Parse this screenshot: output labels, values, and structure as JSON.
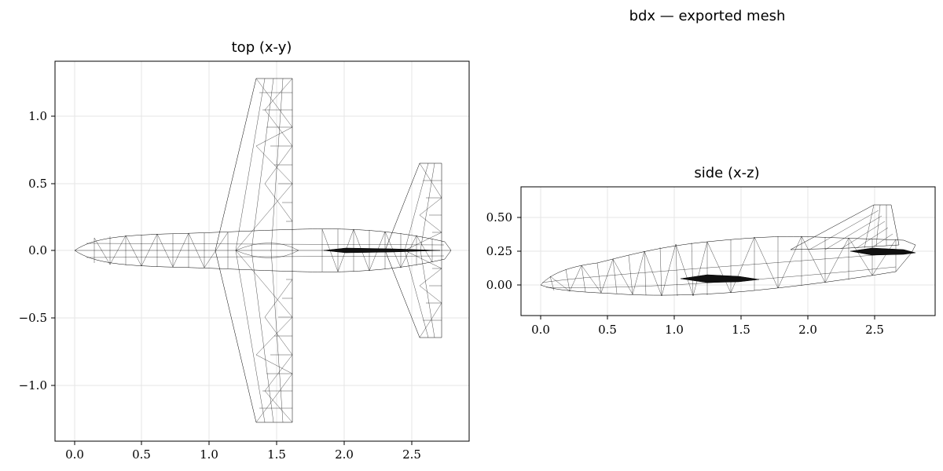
{
  "figure": {
    "suptitle": "bdx — exported mesh"
  },
  "panels": {
    "top": {
      "title": "top (x-y)",
      "x_ticks": [
        "0.0",
        "0.5",
        "1.0",
        "1.5",
        "2.0",
        "2.5"
      ],
      "y_ticks": [
        "1.0",
        "0.5",
        "0.0",
        "−0.5",
        "−1.0"
      ]
    },
    "side": {
      "title": "side (x-z)",
      "x_ticks": [
        "0.0",
        "0.5",
        "1.0",
        "1.5",
        "2.0",
        "2.5"
      ],
      "y_ticks": [
        "0.50",
        "0.25",
        "0.00"
      ]
    }
  }
}
